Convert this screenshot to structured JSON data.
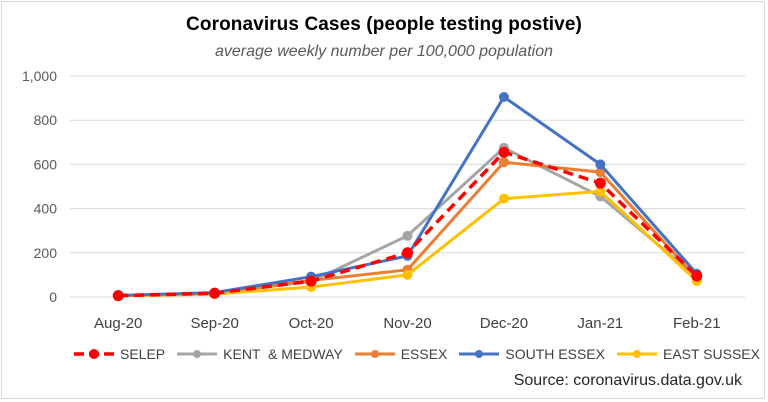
{
  "chart_data": {
    "type": "line",
    "title": "Coronavirus Cases (people testing postive)",
    "subtitle": "average weekly number per 100,000 population",
    "xlabel": "",
    "ylabel": "",
    "categories": [
      "Aug-20",
      "Sep-20",
      "Oct-20",
      "Nov-20",
      "Dec-20",
      "Jan-21",
      "Feb-21"
    ],
    "ylim": [
      0,
      1000
    ],
    "yticks": [
      0,
      200,
      400,
      600,
      800,
      1000
    ],
    "ytick_labels": [
      "0",
      "200",
      "400",
      "600",
      "800",
      "1,000"
    ],
    "grid": true,
    "legend_position": "bottom",
    "series": [
      {
        "name": "SELEP",
        "color": "#ff0000",
        "dashed": true,
        "values": [
          6,
          17,
          72,
          200,
          655,
          515,
          95
        ]
      },
      {
        "name": "KENT  & MEDWAY",
        "color": "#a5a5a5",
        "dashed": false,
        "values": [
          6,
          17,
          70,
          277,
          675,
          455,
          90
        ]
      },
      {
        "name": "ESSEX",
        "color": "#ed7d31",
        "dashed": false,
        "values": [
          6,
          18,
          75,
          123,
          610,
          565,
          85
        ]
      },
      {
        "name": "SOUTH ESSEX",
        "color": "#4472c4",
        "dashed": false,
        "values": [
          7,
          20,
          92,
          186,
          905,
          600,
          105
        ]
      },
      {
        "name": "EAST SUSSEX",
        "color": "#ffc000",
        "dashed": false,
        "values": [
          5,
          13,
          45,
          100,
          445,
          478,
          72
        ]
      }
    ],
    "annotations": [
      "Source: coronavirus.data.gov.uk"
    ]
  },
  "source": "Source: coronavirus.data.gov.uk"
}
